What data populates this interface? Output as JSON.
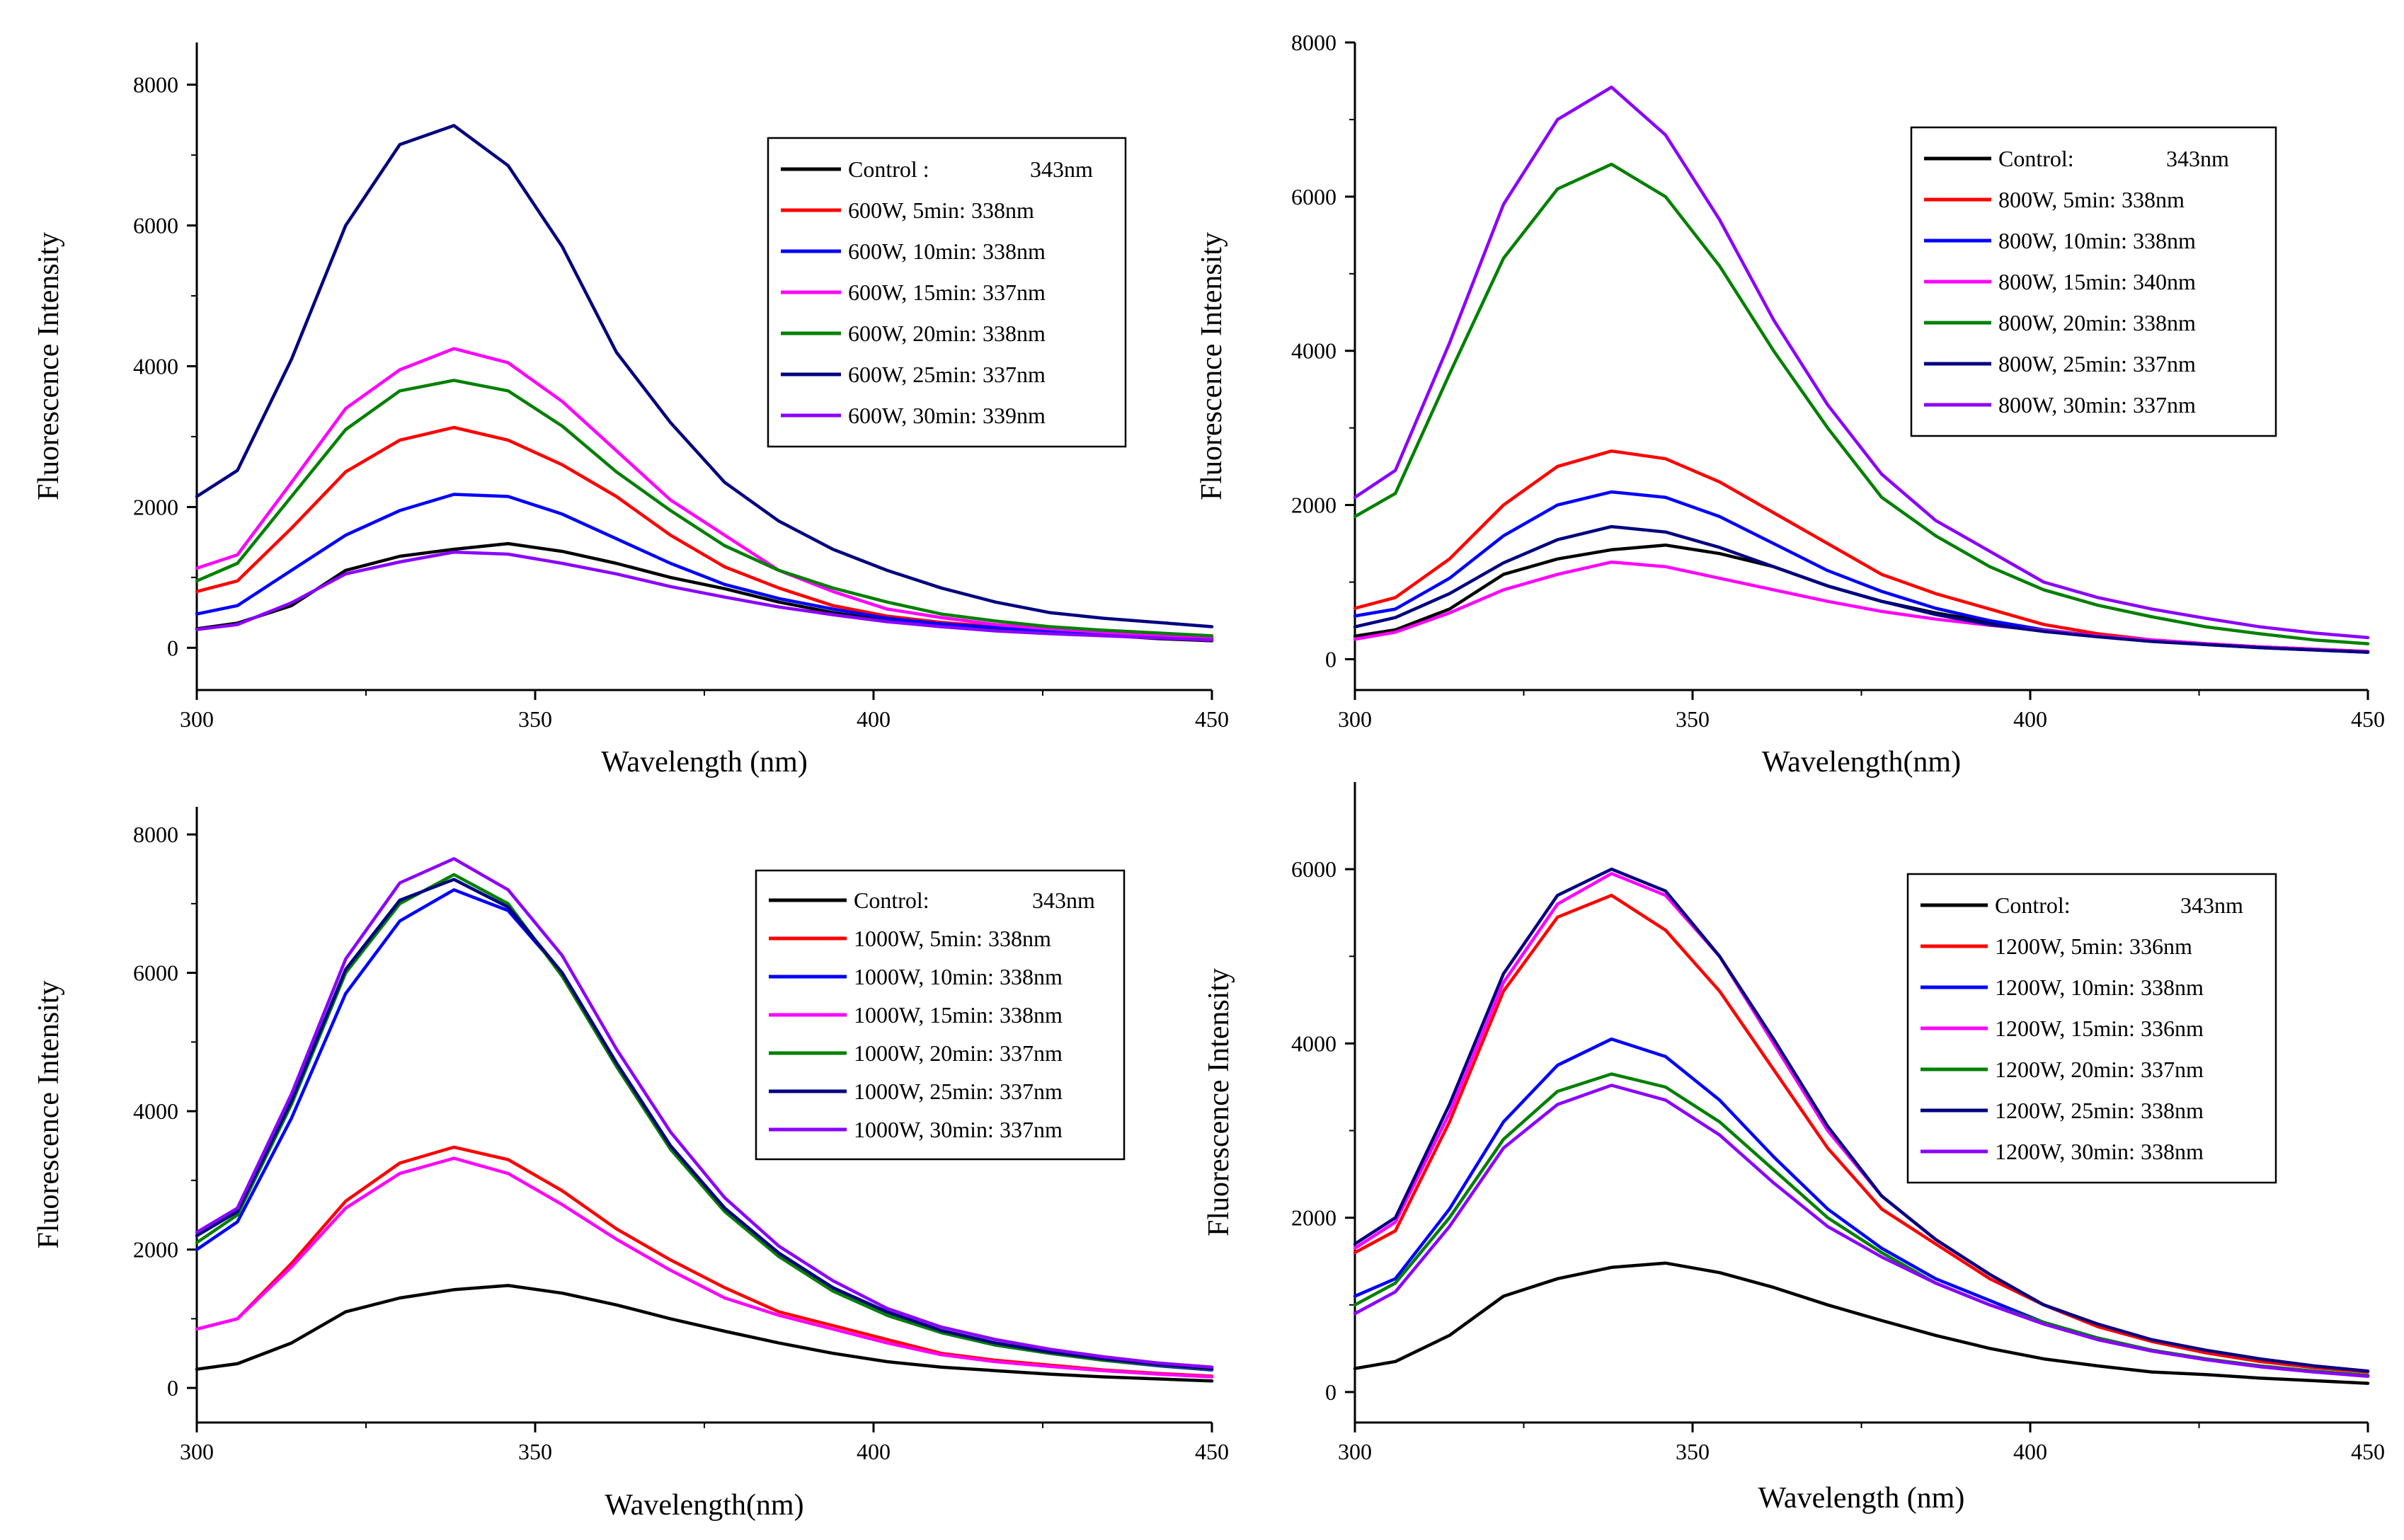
{
  "colors": {
    "Control": "#000000",
    "5min": "#ff0000",
    "10min": "#0000ff",
    "15min": "#ff00ff",
    "20min": "#008000",
    "25min": "#000080",
    "30min": "#8b00ff"
  },
  "chart_data": [
    {
      "type": "line",
      "title": "",
      "xlabel": "Wavelength (nm)",
      "ylabel": "Fluorescence Intensity",
      "xlim": [
        300,
        450
      ],
      "ylim": [
        -600,
        8600
      ],
      "xticks": [
        300,
        350,
        400,
        450
      ],
      "yticks": [
        0,
        2000,
        4000,
        6000,
        8000
      ],
      "x": [
        300,
        306,
        314,
        322,
        330,
        338,
        346,
        354,
        362,
        370,
        378,
        386,
        394,
        402,
        410,
        418,
        426,
        434,
        442,
        450
      ],
      "legend": [
        {
          "label": "Control :",
          "value": "343nm"
        },
        {
          "label": "600W,   5min: 338nm",
          "value": ""
        },
        {
          "label": "600W, 10min: 338nm",
          "value": ""
        },
        {
          "label": "600W, 15min: 337nm",
          "value": ""
        },
        {
          "label": "600W, 20min: 338nm",
          "value": ""
        },
        {
          "label": "600W, 25min: 337nm",
          "value": ""
        },
        {
          "label": "600W, 30min: 339nm",
          "value": ""
        }
      ],
      "series": [
        {
          "name": "Control",
          "values": [
            270,
            350,
            600,
            1100,
            1300,
            1400,
            1480,
            1370,
            1200,
            1000,
            840,
            650,
            500,
            380,
            300,
            250,
            220,
            180,
            130,
            100
          ]
        },
        {
          "name": "600W, 5min",
          "values": [
            800,
            950,
            1700,
            2500,
            2950,
            3130,
            2950,
            2600,
            2150,
            1600,
            1150,
            850,
            600,
            450,
            360,
            300,
            250,
            200,
            160,
            130
          ]
        },
        {
          "name": "600W, 10min",
          "values": [
            480,
            600,
            1100,
            1600,
            1950,
            2180,
            2150,
            1900,
            1550,
            1200,
            900,
            700,
            550,
            420,
            340,
            290,
            240,
            200,
            160,
            130
          ]
        },
        {
          "name": "600W, 15min",
          "values": [
            1130,
            1320,
            2350,
            3400,
            3950,
            4250,
            4050,
            3500,
            2800,
            2100,
            1600,
            1100,
            800,
            550,
            430,
            330,
            270,
            220,
            180,
            150
          ]
        },
        {
          "name": "600W, 20min",
          "values": [
            950,
            1200,
            2150,
            3100,
            3650,
            3800,
            3650,
            3150,
            2500,
            1950,
            1450,
            1100,
            850,
            650,
            480,
            380,
            300,
            250,
            210,
            170
          ]
        },
        {
          "name": "600W, 25min",
          "values": [
            2150,
            2520,
            4100,
            6000,
            7150,
            7420,
            6850,
            5700,
            4200,
            3200,
            2350,
            1800,
            1400,
            1100,
            850,
            650,
            500,
            420,
            360,
            300
          ]
        },
        {
          "name": "600W, 30min",
          "values": [
            260,
            330,
            640,
            1050,
            1220,
            1360,
            1330,
            1200,
            1050,
            870,
            720,
            580,
            470,
            370,
            300,
            240,
            200,
            170,
            140,
            110
          ]
        }
      ]
    },
    {
      "type": "line",
      "title": "",
      "xlabel": "Wavelength(nm)",
      "ylabel": "Fluorescence Intensity",
      "xlim": [
        300,
        450
      ],
      "ylim": [
        -400,
        8000
      ],
      "xticks": [
        300,
        350,
        400,
        450
      ],
      "yticks": [
        0,
        2000,
        4000,
        6000,
        8000
      ],
      "x": [
        300,
        306,
        314,
        322,
        330,
        338,
        346,
        354,
        362,
        370,
        378,
        386,
        394,
        402,
        410,
        418,
        426,
        434,
        442,
        450
      ],
      "legend": [
        {
          "label": "Control:",
          "value": "343nm"
        },
        {
          "label": "800W,   5min: 338nm",
          "value": ""
        },
        {
          "label": "800W, 10min: 338nm",
          "value": ""
        },
        {
          "label": "800W, 15min: 340nm",
          "value": ""
        },
        {
          "label": "800W, 20min: 338nm",
          "value": ""
        },
        {
          "label": "800W, 25min: 337nm",
          "value": ""
        },
        {
          "label": "800W, 30min: 337nm",
          "value": ""
        }
      ],
      "series": [
        {
          "name": "Control",
          "values": [
            300,
            380,
            650,
            1100,
            1300,
            1420,
            1480,
            1370,
            1200,
            950,
            750,
            600,
            480,
            380,
            300,
            250,
            200,
            160,
            130,
            100
          ]
        },
        {
          "name": "800W, 5min",
          "values": [
            660,
            800,
            1300,
            2000,
            2500,
            2700,
            2600,
            2300,
            1900,
            1500,
            1100,
            850,
            650,
            450,
            330,
            250,
            200,
            160,
            130,
            100
          ]
        },
        {
          "name": "800W, 10min",
          "values": [
            560,
            650,
            1050,
            1600,
            2000,
            2170,
            2100,
            1850,
            1500,
            1150,
            880,
            660,
            500,
            380,
            300,
            240,
            190,
            150,
            120,
            90
          ]
        },
        {
          "name": "800W, 15min",
          "values": [
            260,
            350,
            600,
            900,
            1100,
            1260,
            1200,
            1050,
            900,
            750,
            620,
            520,
            440,
            370,
            300,
            250,
            200,
            160,
            130,
            100
          ]
        },
        {
          "name": "800W, 20min",
          "values": [
            1850,
            2150,
            3700,
            5200,
            6100,
            6420,
            6000,
            5100,
            4000,
            3000,
            2100,
            1600,
            1200,
            900,
            700,
            550,
            420,
            330,
            250,
            200
          ]
        },
        {
          "name": "800W, 25min",
          "values": [
            420,
            540,
            850,
            1250,
            1550,
            1720,
            1650,
            1450,
            1200,
            950,
            750,
            580,
            450,
            360,
            290,
            230,
            190,
            150,
            120,
            90
          ]
        },
        {
          "name": "800W, 30min",
          "values": [
            2100,
            2450,
            4100,
            5900,
            7000,
            7420,
            6800,
            5700,
            4400,
            3300,
            2400,
            1800,
            1400,
            1000,
            800,
            650,
            530,
            420,
            340,
            280
          ]
        }
      ]
    },
    {
      "type": "line",
      "title": "",
      "xlabel": "Wavelength(nm)",
      "ylabel": "Fluorescence Intensity",
      "xlim": [
        300,
        450
      ],
      "ylim": [
        -500,
        8400
      ],
      "xticks": [
        300,
        350,
        400,
        450
      ],
      "yticks": [
        0,
        2000,
        4000,
        6000,
        8000
      ],
      "x": [
        300,
        306,
        314,
        322,
        330,
        338,
        346,
        354,
        362,
        370,
        378,
        386,
        394,
        402,
        410,
        418,
        426,
        434,
        442,
        450
      ],
      "legend": [
        {
          "label": "Control:",
          "value": "343nm"
        },
        {
          "label": "1000W,   5min: 338nm",
          "value": ""
        },
        {
          "label": "1000W, 10min: 338nm",
          "value": ""
        },
        {
          "label": "1000W, 15min: 338nm",
          "value": ""
        },
        {
          "label": "1000W, 20min: 337nm",
          "value": ""
        },
        {
          "label": "1000W, 25min: 337nm",
          "value": ""
        },
        {
          "label": "1000W, 30min: 337nm",
          "value": ""
        }
      ],
      "series": [
        {
          "name": "Control",
          "values": [
            270,
            350,
            650,
            1100,
            1300,
            1420,
            1480,
            1370,
            1200,
            1000,
            820,
            650,
            500,
            380,
            300,
            250,
            200,
            160,
            130,
            100
          ]
        },
        {
          "name": "1000W, 5min",
          "values": [
            850,
            1000,
            1800,
            2700,
            3250,
            3480,
            3300,
            2850,
            2300,
            1850,
            1450,
            1100,
            900,
            700,
            500,
            400,
            330,
            260,
            210,
            170
          ]
        },
        {
          "name": "1000W, 10min",
          "values": [
            2000,
            2400,
            3900,
            5700,
            6750,
            7200,
            6900,
            6000,
            4700,
            3500,
            2600,
            1900,
            1450,
            1050,
            800,
            620,
            500,
            400,
            320,
            260
          ]
        },
        {
          "name": "1000W, 15min",
          "values": [
            850,
            1000,
            1750,
            2600,
            3100,
            3320,
            3100,
            2650,
            2150,
            1700,
            1300,
            1050,
            850,
            650,
            480,
            380,
            310,
            250,
            200,
            160
          ]
        },
        {
          "name": "1000W, 20min",
          "values": [
            2100,
            2500,
            4100,
            6000,
            7000,
            7420,
            7000,
            5950,
            4650,
            3450,
            2550,
            1900,
            1400,
            1050,
            800,
            620,
            500,
            400,
            330,
            270
          ]
        },
        {
          "name": "1000W, 25min",
          "values": [
            2200,
            2550,
            4150,
            6050,
            7050,
            7350,
            6950,
            6000,
            4700,
            3500,
            2600,
            1950,
            1450,
            1100,
            830,
            650,
            520,
            420,
            340,
            280
          ]
        },
        {
          "name": "1000W, 30min",
          "values": [
            2250,
            2600,
            4250,
            6200,
            7300,
            7650,
            7200,
            6250,
            4900,
            3700,
            2750,
            2050,
            1550,
            1150,
            880,
            700,
            560,
            450,
            360,
            300
          ]
        }
      ]
    },
    {
      "type": "line",
      "title": "",
      "xlabel": "Wavelength (nm)",
      "ylabel": "Fluorescence Intensity",
      "xlim": [
        300,
        450
      ],
      "ylim": [
        -350,
        7000
      ],
      "xticks": [
        300,
        350,
        400,
        450
      ],
      "yticks": [
        0,
        2000,
        4000,
        6000
      ],
      "x": [
        300,
        306,
        314,
        322,
        330,
        338,
        346,
        354,
        362,
        370,
        378,
        386,
        394,
        402,
        410,
        418,
        426,
        434,
        442,
        450
      ],
      "legend": [
        {
          "label": "Control:",
          "value": "343nm"
        },
        {
          "label": "1200W,   5min: 336nm",
          "value": ""
        },
        {
          "label": "1200W, 10min: 338nm",
          "value": ""
        },
        {
          "label": "1200W, 15min: 336nm",
          "value": ""
        },
        {
          "label": "1200W, 20min: 337nm",
          "value": ""
        },
        {
          "label": "1200W, 25min: 338nm",
          "value": ""
        },
        {
          "label": "1200W, 30min: 338nm",
          "value": ""
        }
      ],
      "series": [
        {
          "name": "Control",
          "values": [
            270,
            350,
            650,
            1100,
            1300,
            1430,
            1480,
            1370,
            1200,
            1000,
            820,
            650,
            500,
            380,
            300,
            230,
            200,
            160,
            130,
            100
          ]
        },
        {
          "name": "1200W, 5min",
          "values": [
            1600,
            1850,
            3100,
            4600,
            5450,
            5700,
            5300,
            4600,
            3700,
            2800,
            2100,
            1700,
            1300,
            1000,
            750,
            580,
            450,
            350,
            280,
            230
          ]
        },
        {
          "name": "1200W, 10min",
          "values": [
            1100,
            1300,
            2100,
            3100,
            3750,
            4050,
            3850,
            3350,
            2700,
            2100,
            1650,
            1300,
            1050,
            800,
            620,
            480,
            380,
            300,
            240,
            190
          ]
        },
        {
          "name": "1200W, 15min",
          "values": [
            1650,
            1950,
            3200,
            4700,
            5600,
            5950,
            5700,
            5000,
            4000,
            3000,
            2250,
            1750,
            1350,
            1000,
            780,
            600,
            480,
            380,
            300,
            240
          ]
        },
        {
          "name": "1200W, 20min",
          "values": [
            1000,
            1250,
            2000,
            2900,
            3450,
            3650,
            3500,
            3100,
            2550,
            2000,
            1600,
            1250,
            1000,
            800,
            620,
            480,
            380,
            300,
            240,
            190
          ]
        },
        {
          "name": "1200W, 25min",
          "values": [
            1700,
            2000,
            3300,
            4800,
            5700,
            6000,
            5750,
            5000,
            4050,
            3050,
            2250,
            1750,
            1350,
            1000,
            780,
            600,
            480,
            380,
            300,
            240
          ]
        },
        {
          "name": "1200W, 30min",
          "values": [
            900,
            1150,
            1900,
            2800,
            3300,
            3520,
            3350,
            2950,
            2400,
            1900,
            1550,
            1250,
            1000,
            780,
            600,
            470,
            370,
            290,
            230,
            180
          ]
        }
      ]
    }
  ]
}
